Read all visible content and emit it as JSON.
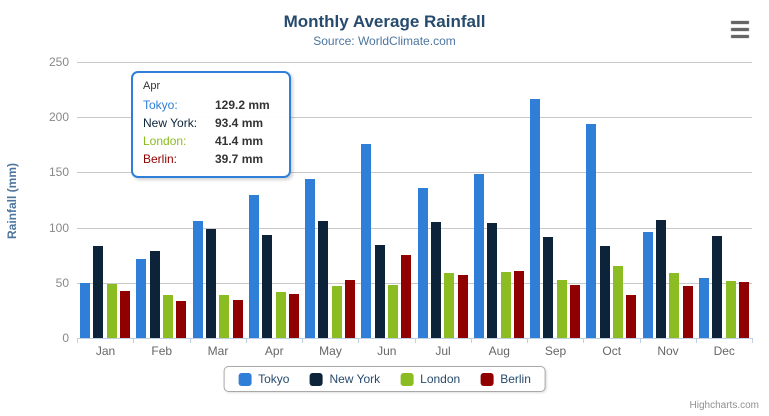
{
  "chart": {
    "title": "Monthly Average Rainfall",
    "subtitle": "Source: WorldClimate.com",
    "credits": "Highcharts.com",
    "menu_icon": "hamburger-menu"
  },
  "chart_data": {
    "type": "bar",
    "title": "Monthly Average Rainfall",
    "subtitle": "Source: WorldClimate.com",
    "categories": [
      "Jan",
      "Feb",
      "Mar",
      "Apr",
      "May",
      "Jun",
      "Jul",
      "Aug",
      "Sep",
      "Oct",
      "Nov",
      "Dec"
    ],
    "series": [
      {
        "name": "Tokyo",
        "color": "#2f7ed8",
        "values": [
          49.9,
          71.5,
          106.4,
          129.2,
          144.0,
          176.0,
          135.6,
          148.5,
          216.4,
          194.1,
          95.6,
          54.4
        ]
      },
      {
        "name": "New York",
        "color": "#0d233a",
        "values": [
          83.6,
          78.8,
          98.5,
          93.4,
          106.0,
          84.5,
          105.0,
          104.3,
          91.2,
          83.5,
          106.6,
          92.3
        ]
      },
      {
        "name": "London",
        "color": "#8bbc21",
        "values": [
          48.9,
          38.8,
          39.3,
          41.4,
          47.0,
          48.3,
          59.0,
          59.6,
          52.4,
          65.2,
          59.3,
          51.2
        ]
      },
      {
        "name": "Berlin",
        "color": "#910000",
        "values": [
          42.4,
          33.2,
          34.5,
          39.7,
          52.6,
          75.5,
          57.4,
          60.4,
          47.6,
          39.1,
          46.8,
          51.1
        ]
      }
    ],
    "xlabel": "",
    "ylabel": "Rainfall (mm)",
    "yticks": [
      0,
      50,
      100,
      150,
      200,
      250
    ],
    "ylim": [
      0,
      250
    ],
    "grid": true,
    "legend_position": "bottom"
  },
  "tooltip": {
    "header": "Apr",
    "rows": [
      {
        "label": "Tokyo:",
        "value": "129.2 mm",
        "color": "#2f7ed8"
      },
      {
        "label": "New York:",
        "value": "93.4 mm",
        "color": "#0d233a"
      },
      {
        "label": "London:",
        "value": "41.4 mm",
        "color": "#8bbc21"
      },
      {
        "label": "Berlin:",
        "value": "39.7 mm",
        "color": "#910000"
      }
    ]
  },
  "colors": {
    "title": "#274b6d",
    "subtitle": "#4d759e",
    "gridline": "#c9c9c9",
    "axis_line": "#c0d0e0",
    "tooltip_border": "#2f7ed8"
  }
}
